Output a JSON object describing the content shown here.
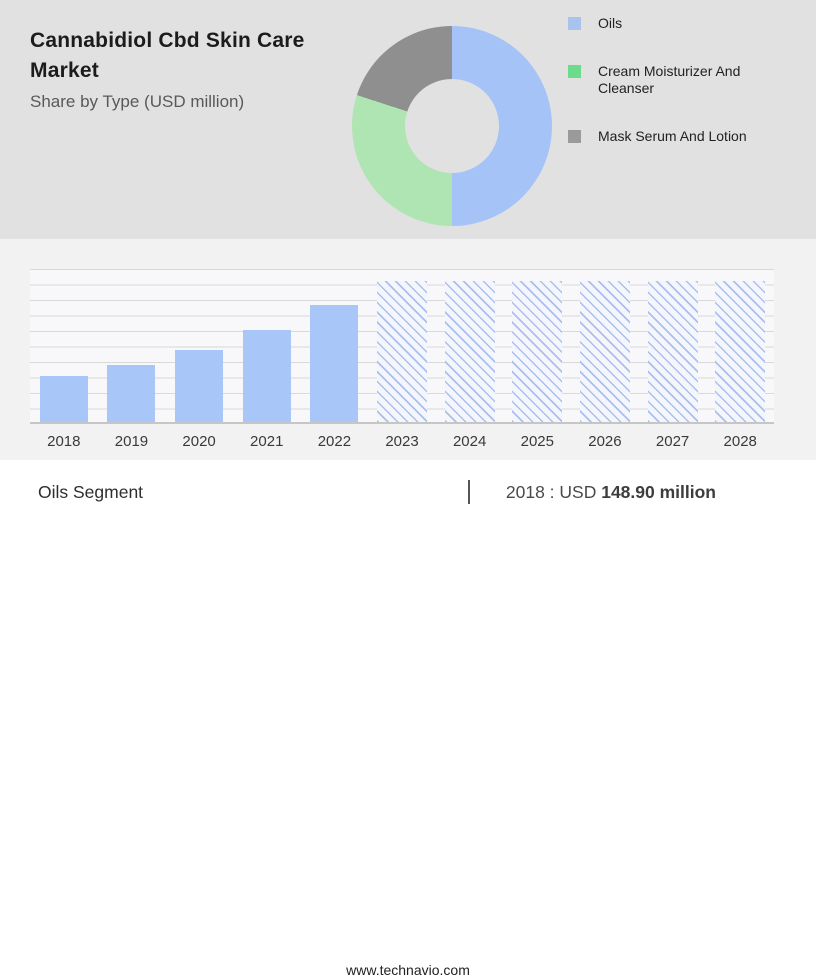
{
  "header": {
    "title": "Cannabidiol Cbd Skin Care Market",
    "subtitle": "Share by Type (USD million)"
  },
  "colors": {
    "top_bg": "#e1e1e1",
    "chart_bg": "#f2f2f3",
    "plot_bg": "#f8f8fa",
    "gridline": "#d9d9d9",
    "bar_blue": "#a8c7f8",
    "hatch_line": "#a9c0ee",
    "donut_blue": "#a5c3f7",
    "donut_green": "#aee5b2",
    "donut_gray": "#8f8f8f",
    "legend_blue": "#a9c3ef",
    "legend_green": "#6bdb8c",
    "legend_gray": "#9a9a9a"
  },
  "chart_data": [
    {
      "type": "pie",
      "donut": true,
      "title": "Share by Type (USD million)",
      "legend_position": "right",
      "slices": [
        {
          "label": "Oils",
          "percent": 50,
          "color": "#a5c3f7",
          "legend_color": "#a9c3ef"
        },
        {
          "label": "Cream Moisturizer And Cleanser",
          "percent": 30,
          "color": "#aee5b2",
          "legend_color": "#6bdb8c"
        },
        {
          "label": "Mask Serum And Lotion",
          "percent": 20,
          "color": "#8f8f8f",
          "legend_color": "#9a9a9a"
        }
      ],
      "note": "slice percentages estimated from arc angles; blue starts at 12 o'clock clockwise"
    },
    {
      "type": "bar",
      "title": "",
      "xlabel": "",
      "ylabel": "",
      "ylim": [
        0,
        500
      ],
      "grid": true,
      "categories": [
        "2018",
        "2019",
        "2020",
        "2021",
        "2022",
        "2023",
        "2024",
        "2025",
        "2026",
        "2027",
        "2028"
      ],
      "series": [
        {
          "name": "Oils segment size (USD million)",
          "values": [
            148.9,
            184,
            233,
            298,
            379,
            null,
            null,
            null,
            null,
            null,
            null
          ]
        }
      ],
      "bars": [
        {
          "year": "2018",
          "value": 148.9,
          "forecast": false
        },
        {
          "year": "2019",
          "value": 184,
          "forecast": false,
          "estimated": true
        },
        {
          "year": "2020",
          "value": 233,
          "forecast": false,
          "estimated": true
        },
        {
          "year": "2021",
          "value": 298,
          "forecast": false,
          "estimated": true
        },
        {
          "year": "2022",
          "value": 379,
          "forecast": false,
          "estimated": true
        },
        {
          "year": "2023",
          "value": null,
          "forecast": true
        },
        {
          "year": "2024",
          "value": null,
          "forecast": true
        },
        {
          "year": "2025",
          "value": null,
          "forecast": true
        },
        {
          "year": "2026",
          "value": null,
          "forecast": true
        },
        {
          "year": "2027",
          "value": null,
          "forecast": true
        },
        {
          "year": "2028",
          "value": null,
          "forecast": true
        }
      ],
      "forecast_bars": {
        "style": "hatched",
        "drawn_height_fraction": 0.91
      },
      "annotation": "2018 : USD 148.90 million"
    }
  ],
  "footer": {
    "segment_label": "Oils Segment",
    "divider": "|",
    "value_prefix": "2018 : USD",
    "value_bold": "148.90 million",
    "website": "www.technavio.com"
  }
}
